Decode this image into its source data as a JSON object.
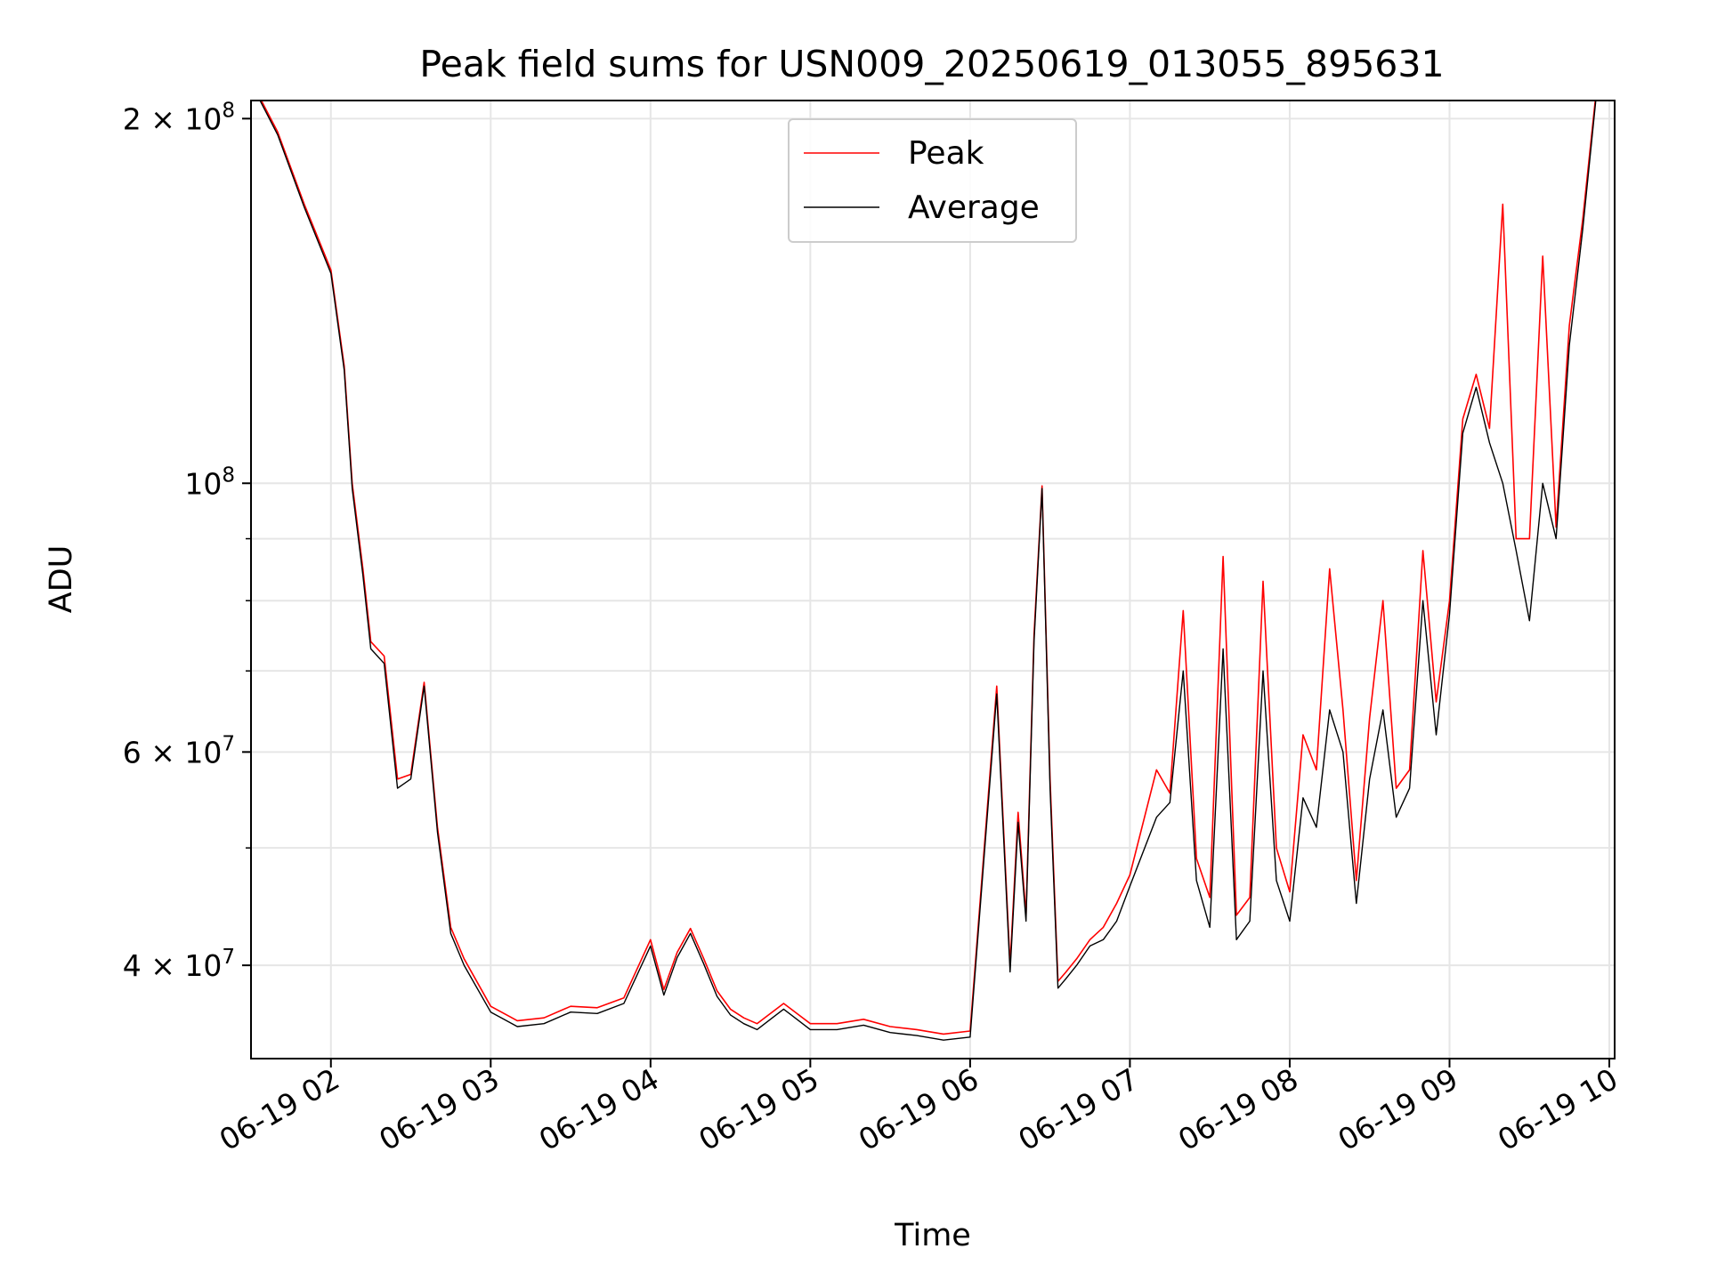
{
  "chart_data": {
    "type": "line",
    "title": "Peak field sums for USN009_20250619_013055_895631",
    "xlabel": "Time",
    "ylabel": "ADU",
    "yscale": "log",
    "grid": true,
    "legend_placement": "top-center",
    "xlim": [
      "2025-06-19 01:30",
      "2025-06-19 10:02"
    ],
    "ylim": [
      33500000,
      207000000
    ],
    "x_ticks": [
      {
        "value": "2025-06-19 02:00",
        "label": "06-19 02"
      },
      {
        "value": "2025-06-19 03:00",
        "label": "06-19 03"
      },
      {
        "value": "2025-06-19 04:00",
        "label": "06-19 04"
      },
      {
        "value": "2025-06-19 05:00",
        "label": "06-19 05"
      },
      {
        "value": "2025-06-19 06:00",
        "label": "06-19 06"
      },
      {
        "value": "2025-06-19 07:00",
        "label": "06-19 07"
      },
      {
        "value": "2025-06-19 08:00",
        "label": "06-19 08"
      },
      {
        "value": "2025-06-19 09:00",
        "label": "06-19 09"
      },
      {
        "value": "2025-06-19 10:00",
        "label": "06-19 10"
      }
    ],
    "y_ticks_major": [
      {
        "value": 40000000,
        "base": "4 × 10",
        "exp": "7"
      },
      {
        "value": 60000000,
        "base": "6 × 10",
        "exp": "7"
      },
      {
        "value": 100000000,
        "base": "10",
        "exp": "8"
      },
      {
        "value": 200000000,
        "base": "2 × 10",
        "exp": "8"
      }
    ],
    "y_ticks_minor": [
      50000000,
      70000000,
      80000000,
      90000000
    ],
    "series": [
      {
        "name": "Peak",
        "color": "#ff0000",
        "x": [
          "2025-06-19 01:30",
          "2025-06-19 01:40",
          "2025-06-19 01:50",
          "2025-06-19 02:00",
          "2025-06-19 02:05",
          "2025-06-19 02:08",
          "2025-06-19 02:12",
          "2025-06-19 02:15",
          "2025-06-19 02:20",
          "2025-06-19 02:25",
          "2025-06-19 02:30",
          "2025-06-19 02:35",
          "2025-06-19 02:40",
          "2025-06-19 02:45",
          "2025-06-19 02:50",
          "2025-06-19 03:00",
          "2025-06-19 03:10",
          "2025-06-19 03:20",
          "2025-06-19 03:30",
          "2025-06-19 03:40",
          "2025-06-19 03:50",
          "2025-06-19 04:00",
          "2025-06-19 04:05",
          "2025-06-19 04:10",
          "2025-06-19 04:15",
          "2025-06-19 04:20",
          "2025-06-19 04:25",
          "2025-06-19 04:30",
          "2025-06-19 04:35",
          "2025-06-19 04:40",
          "2025-06-19 04:50",
          "2025-06-19 05:00",
          "2025-06-19 05:10",
          "2025-06-19 05:20",
          "2025-06-19 05:30",
          "2025-06-19 05:40",
          "2025-06-19 05:50",
          "2025-06-19 06:00",
          "2025-06-19 06:10",
          "2025-06-19 06:15",
          "2025-06-19 06:18",
          "2025-06-19 06:21",
          "2025-06-19 06:24",
          "2025-06-19 06:27",
          "2025-06-19 06:30",
          "2025-06-19 06:33",
          "2025-06-19 06:36",
          "2025-06-19 06:40",
          "2025-06-19 06:45",
          "2025-06-19 06:50",
          "2025-06-19 06:55",
          "2025-06-19 07:00",
          "2025-06-19 07:10",
          "2025-06-19 07:15",
          "2025-06-19 07:20",
          "2025-06-19 07:25",
          "2025-06-19 07:30",
          "2025-06-19 07:35",
          "2025-06-19 07:40",
          "2025-06-19 07:45",
          "2025-06-19 07:50",
          "2025-06-19 07:55",
          "2025-06-19 08:00",
          "2025-06-19 08:05",
          "2025-06-19 08:10",
          "2025-06-19 08:15",
          "2025-06-19 08:20",
          "2025-06-19 08:25",
          "2025-06-19 08:30",
          "2025-06-19 08:35",
          "2025-06-19 08:40",
          "2025-06-19 08:45",
          "2025-06-19 08:50",
          "2025-06-19 08:55",
          "2025-06-19 09:00",
          "2025-06-19 09:05",
          "2025-06-19 09:10",
          "2025-06-19 09:15",
          "2025-06-19 09:20",
          "2025-06-19 09:25",
          "2025-06-19 09:30",
          "2025-06-19 09:35",
          "2025-06-19 09:40",
          "2025-06-19 09:45",
          "2025-06-19 09:50",
          "2025-06-19 09:55"
        ],
        "values": [
          215000000,
          195000000,
          170000000,
          150000000,
          125000000,
          100000000,
          85000000,
          74000000,
          72000000,
          57000000,
          57500000,
          68500000,
          52000000,
          43000000,
          40500000,
          37000000,
          36000000,
          36200000,
          37000000,
          36900000,
          37600000,
          42000000,
          38200000,
          41000000,
          42900000,
          40500000,
          38100000,
          36800000,
          36200000,
          35800000,
          37200000,
          35800000,
          35800000,
          36100000,
          35600000,
          35400000,
          35100000,
          35300000,
          68000000,
          40000000,
          53500000,
          44000000,
          75000000,
          99500000,
          57000000,
          38800000,
          39500000,
          40500000,
          42000000,
          43000000,
          45000000,
          47500000,
          58000000,
          55500000,
          78500000,
          49000000,
          45500000,
          87000000,
          44000000,
          45500000,
          83000000,
          50000000,
          46000000,
          62000000,
          58000000,
          85000000,
          65000000,
          47000000,
          64000000,
          80000000,
          56000000,
          58000000,
          88000000,
          66000000,
          80000000,
          113000000,
          123000000,
          111000000,
          170000000,
          90000000,
          90000000,
          154000000,
          92000000,
          135000000,
          165000000,
          210000000
        ]
      },
      {
        "name": "Average",
        "color": "#000000",
        "x": [
          "2025-06-19 01:30",
          "2025-06-19 01:40",
          "2025-06-19 01:50",
          "2025-06-19 02:00",
          "2025-06-19 02:05",
          "2025-06-19 02:08",
          "2025-06-19 02:12",
          "2025-06-19 02:15",
          "2025-06-19 02:20",
          "2025-06-19 02:25",
          "2025-06-19 02:30",
          "2025-06-19 02:35",
          "2025-06-19 02:40",
          "2025-06-19 02:45",
          "2025-06-19 02:50",
          "2025-06-19 03:00",
          "2025-06-19 03:10",
          "2025-06-19 03:20",
          "2025-06-19 03:30",
          "2025-06-19 03:40",
          "2025-06-19 03:50",
          "2025-06-19 04:00",
          "2025-06-19 04:05",
          "2025-06-19 04:10",
          "2025-06-19 04:15",
          "2025-06-19 04:20",
          "2025-06-19 04:25",
          "2025-06-19 04:30",
          "2025-06-19 04:35",
          "2025-06-19 04:40",
          "2025-06-19 04:50",
          "2025-06-19 05:00",
          "2025-06-19 05:10",
          "2025-06-19 05:20",
          "2025-06-19 05:30",
          "2025-06-19 05:40",
          "2025-06-19 05:50",
          "2025-06-19 06:00",
          "2025-06-19 06:10",
          "2025-06-19 06:15",
          "2025-06-19 06:18",
          "2025-06-19 06:21",
          "2025-06-19 06:24",
          "2025-06-19 06:27",
          "2025-06-19 06:30",
          "2025-06-19 06:33",
          "2025-06-19 06:36",
          "2025-06-19 06:40",
          "2025-06-19 06:45",
          "2025-06-19 06:50",
          "2025-06-19 06:55",
          "2025-06-19 07:00",
          "2025-06-19 07:10",
          "2025-06-19 07:15",
          "2025-06-19 07:20",
          "2025-06-19 07:25",
          "2025-06-19 07:30",
          "2025-06-19 07:35",
          "2025-06-19 07:40",
          "2025-06-19 07:45",
          "2025-06-19 07:50",
          "2025-06-19 07:55",
          "2025-06-19 08:00",
          "2025-06-19 08:05",
          "2025-06-19 08:10",
          "2025-06-19 08:15",
          "2025-06-19 08:20",
          "2025-06-19 08:25",
          "2025-06-19 08:30",
          "2025-06-19 08:35",
          "2025-06-19 08:40",
          "2025-06-19 08:45",
          "2025-06-19 08:50",
          "2025-06-19 08:55",
          "2025-06-19 09:00",
          "2025-06-19 09:05",
          "2025-06-19 09:10",
          "2025-06-19 09:15",
          "2025-06-19 09:20",
          "2025-06-19 09:25",
          "2025-06-19 09:30",
          "2025-06-19 09:35",
          "2025-06-19 09:40",
          "2025-06-19 09:45",
          "2025-06-19 09:50",
          "2025-06-19 09:55"
        ],
        "values": [
          214000000,
          194000000,
          169000000,
          149000000,
          124000000,
          99000000,
          84000000,
          73000000,
          71000000,
          56000000,
          57000000,
          68000000,
          51500000,
          42500000,
          40000000,
          36600000,
          35600000,
          35800000,
          36600000,
          36500000,
          37200000,
          41500000,
          37800000,
          40600000,
          42500000,
          40100000,
          37700000,
          36400000,
          35800000,
          35400000,
          36800000,
          35400000,
          35400000,
          35700000,
          35200000,
          35000000,
          34700000,
          34900000,
          67000000,
          39500000,
          52500000,
          43500000,
          74000000,
          99000000,
          56000000,
          38300000,
          39000000,
          40000000,
          41500000,
          42000000,
          43500000,
          46500000,
          53000000,
          54500000,
          70000000,
          47000000,
          43000000,
          73000000,
          42000000,
          43500000,
          70000000,
          47000000,
          43500000,
          55000000,
          52000000,
          65000000,
          60000000,
          45000000,
          57000000,
          65000000,
          53000000,
          56000000,
          80000000,
          62000000,
          78000000,
          110000000,
          120000000,
          108000000,
          100000000,
          88000000,
          77000000,
          100000000,
          90000000,
          130000000,
          162000000,
          208000000
        ]
      }
    ]
  }
}
